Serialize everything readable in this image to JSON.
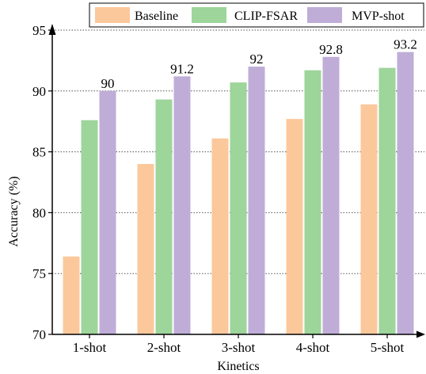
{
  "chart_data": {
    "type": "bar",
    "categories": [
      "1-shot",
      "2-shot",
      "3-shot",
      "4-shot",
      "5-shot"
    ],
    "series": [
      {
        "name": "Baseline",
        "color": "#FBC89B",
        "values": [
          76.4,
          84.0,
          86.1,
          87.7,
          88.9
        ]
      },
      {
        "name": "CLIP-FSAR",
        "color": "#9DD59A",
        "values": [
          87.6,
          89.3,
          90.7,
          91.7,
          91.9
        ]
      },
      {
        "name": "MVP-shot",
        "color": "#BFADD8",
        "values": [
          90.0,
          91.2,
          92.0,
          92.8,
          93.2
        ]
      }
    ],
    "data_labels": {
      "series": "MVP-shot",
      "labels": [
        "90",
        "91.2",
        "92",
        "92.8",
        "93.2"
      ]
    },
    "xlabel": "Kinetics",
    "ylabel": "Accuracy (%)",
    "ylim": [
      70,
      95
    ],
    "yticks": [
      "70",
      "75",
      "80",
      "85",
      "90",
      "95"
    ],
    "grid": true,
    "grid_style": "dotted horizontal",
    "legend_position": "top-right"
  }
}
